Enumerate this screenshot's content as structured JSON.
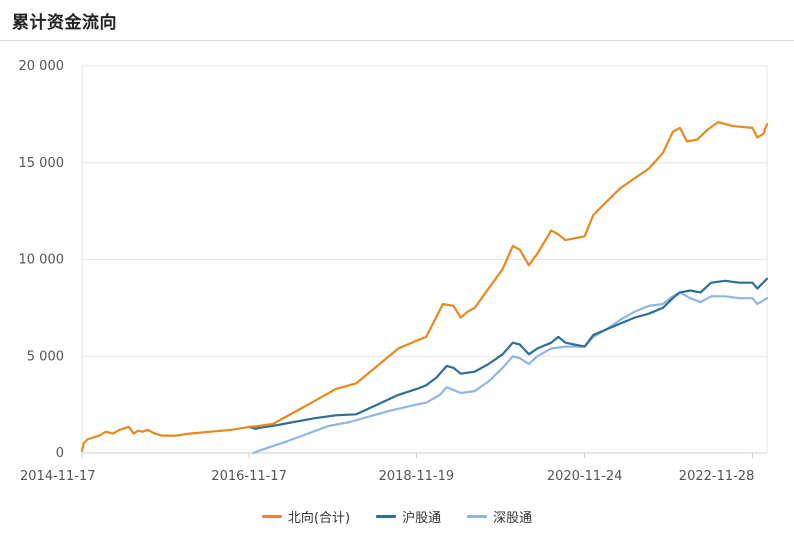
{
  "header": {
    "title": "累计资金流向"
  },
  "chart_data": {
    "type": "line",
    "title": "累计资金流向",
    "xlabel": "",
    "ylabel": "",
    "ylim": [
      0,
      20000
    ],
    "yticks": [
      0,
      5000,
      10000,
      15000,
      20000
    ],
    "ytick_labels": [
      "0",
      "5 000",
      "10 000",
      "15 000",
      "20 000"
    ],
    "xrange": [
      "2014-11-17",
      "2023-01-31"
    ],
    "xticks": [
      "2014-11-17",
      "2016-11-17",
      "2018-11-19",
      "2020-11-24",
      "2022-11-28"
    ],
    "grid": "horizontal",
    "legend_position": "bottom",
    "series": [
      {
        "name": "北向(合计)",
        "color": "#e8891e",
        "points": [
          [
            "2014-11-17",
            100
          ],
          [
            "2014-11-25",
            500
          ],
          [
            "2014-12-10",
            700
          ],
          [
            "2015-01-05",
            800
          ],
          [
            "2015-02-01",
            900
          ],
          [
            "2015-03-01",
            1100
          ],
          [
            "2015-04-01",
            1000
          ],
          [
            "2015-05-01",
            1200
          ],
          [
            "2015-06-10",
            1350
          ],
          [
            "2015-07-01",
            1000
          ],
          [
            "2015-07-20",
            1150
          ],
          [
            "2015-08-10",
            1100
          ],
          [
            "2015-09-01",
            1200
          ],
          [
            "2015-10-01",
            1000
          ],
          [
            "2015-11-01",
            900
          ],
          [
            "2016-01-01",
            900
          ],
          [
            "2016-03-01",
            1000
          ],
          [
            "2016-06-01",
            1100
          ],
          [
            "2016-09-01",
            1200
          ],
          [
            "2016-11-17",
            1350
          ],
          [
            "2017-01-01",
            1400
          ],
          [
            "2017-03-01",
            1500
          ],
          [
            "2017-06-01",
            2100
          ],
          [
            "2017-09-01",
            2700
          ],
          [
            "2017-12-01",
            3300
          ],
          [
            "2018-03-01",
            3600
          ],
          [
            "2018-06-01",
            4500
          ],
          [
            "2018-09-01",
            5400
          ],
          [
            "2018-11-19",
            5800
          ],
          [
            "2019-01-01",
            6000
          ],
          [
            "2019-03-15",
            7700
          ],
          [
            "2019-05-01",
            7600
          ],
          [
            "2019-06-01",
            7000
          ],
          [
            "2019-07-01",
            7300
          ],
          [
            "2019-08-01",
            7500
          ],
          [
            "2019-10-01",
            8500
          ],
          [
            "2019-12-01",
            9500
          ],
          [
            "2020-01-15",
            10700
          ],
          [
            "2020-02-15",
            10500
          ],
          [
            "2020-03-25",
            9700
          ],
          [
            "2020-05-01",
            10300
          ],
          [
            "2020-07-01",
            11500
          ],
          [
            "2020-08-01",
            11300
          ],
          [
            "2020-09-01",
            11000
          ],
          [
            "2020-11-24",
            11200
          ],
          [
            "2021-01-01",
            12300
          ],
          [
            "2021-03-01",
            13000
          ],
          [
            "2021-05-01",
            13700
          ],
          [
            "2021-07-01",
            14200
          ],
          [
            "2021-09-01",
            14700
          ],
          [
            "2021-11-01",
            15500
          ],
          [
            "2021-12-15",
            16600
          ],
          [
            "2022-01-15",
            16800
          ],
          [
            "2022-02-15",
            16100
          ],
          [
            "2022-04-01",
            16200
          ],
          [
            "2022-05-15",
            16700
          ],
          [
            "2022-07-01",
            17100
          ],
          [
            "2022-09-01",
            16900
          ],
          [
            "2022-11-28",
            16800
          ],
          [
            "2022-12-20",
            16300
          ],
          [
            "2023-01-15",
            16500
          ],
          [
            "2023-01-31",
            17000
          ]
        ]
      },
      {
        "name": "沪股通",
        "color": "#2e6e94",
        "points": [
          [
            "2016-11-17",
            1350
          ],
          [
            "2016-12-15",
            1250
          ],
          [
            "2017-01-01",
            1300
          ],
          [
            "2017-03-01",
            1400
          ],
          [
            "2017-06-01",
            1600
          ],
          [
            "2017-09-01",
            1800
          ],
          [
            "2017-12-01",
            1950
          ],
          [
            "2018-03-01",
            2000
          ],
          [
            "2018-06-01",
            2500
          ],
          [
            "2018-09-01",
            3000
          ],
          [
            "2018-11-19",
            3300
          ],
          [
            "2019-01-01",
            3500
          ],
          [
            "2019-02-15",
            3900
          ],
          [
            "2019-04-01",
            4500
          ],
          [
            "2019-05-01",
            4400
          ],
          [
            "2019-06-01",
            4100
          ],
          [
            "2019-08-01",
            4200
          ],
          [
            "2019-10-01",
            4600
          ],
          [
            "2019-12-01",
            5100
          ],
          [
            "2020-01-15",
            5700
          ],
          [
            "2020-02-15",
            5600
          ],
          [
            "2020-03-25",
            5100
          ],
          [
            "2020-05-01",
            5400
          ],
          [
            "2020-07-01",
            5700
          ],
          [
            "2020-08-01",
            6000
          ],
          [
            "2020-09-01",
            5700
          ],
          [
            "2020-11-24",
            5500
          ],
          [
            "2021-01-01",
            6100
          ],
          [
            "2021-03-01",
            6400
          ],
          [
            "2021-05-01",
            6700
          ],
          [
            "2021-07-01",
            7000
          ],
          [
            "2021-09-01",
            7200
          ],
          [
            "2021-11-01",
            7500
          ],
          [
            "2021-12-15",
            8000
          ],
          [
            "2022-01-15",
            8300
          ],
          [
            "2022-03-01",
            8400
          ],
          [
            "2022-04-15",
            8300
          ],
          [
            "2022-06-01",
            8800
          ],
          [
            "2022-08-01",
            8900
          ],
          [
            "2022-10-01",
            8800
          ],
          [
            "2022-11-28",
            8800
          ],
          [
            "2022-12-20",
            8500
          ],
          [
            "2023-01-31",
            9000
          ]
        ]
      },
      {
        "name": "深股通",
        "color": "#8fb6e3",
        "points": [
          [
            "2016-12-05",
            0
          ],
          [
            "2017-02-01",
            250
          ],
          [
            "2017-05-01",
            600
          ],
          [
            "2017-08-01",
            1000
          ],
          [
            "2017-11-01",
            1400
          ],
          [
            "2018-02-01",
            1600
          ],
          [
            "2018-05-01",
            1900
          ],
          [
            "2018-08-01",
            2200
          ],
          [
            "2018-11-19",
            2500
          ],
          [
            "2019-01-01",
            2600
          ],
          [
            "2019-03-01",
            3000
          ],
          [
            "2019-04-01",
            3400
          ],
          [
            "2019-06-01",
            3100
          ],
          [
            "2019-08-01",
            3200
          ],
          [
            "2019-10-01",
            3700
          ],
          [
            "2019-12-01",
            4400
          ],
          [
            "2020-01-15",
            5000
          ],
          [
            "2020-02-15",
            4900
          ],
          [
            "2020-03-25",
            4600
          ],
          [
            "2020-05-01",
            5000
          ],
          [
            "2020-07-01",
            5400
          ],
          [
            "2020-09-01",
            5500
          ],
          [
            "2020-11-24",
            5500
          ],
          [
            "2021-01-01",
            6000
          ],
          [
            "2021-03-01",
            6400
          ],
          [
            "2021-05-01",
            6900
          ],
          [
            "2021-07-01",
            7300
          ],
          [
            "2021-09-01",
            7600
          ],
          [
            "2021-11-01",
            7700
          ],
          [
            "2021-12-15",
            8100
          ],
          [
            "2022-01-15",
            8300
          ],
          [
            "2022-03-01",
            8000
          ],
          [
            "2022-04-15",
            7800
          ],
          [
            "2022-06-01",
            8100
          ],
          [
            "2022-08-01",
            8100
          ],
          [
            "2022-10-01",
            8000
          ],
          [
            "2022-11-28",
            8000
          ],
          [
            "2022-12-20",
            7700
          ],
          [
            "2023-01-31",
            8000
          ]
        ]
      }
    ]
  }
}
